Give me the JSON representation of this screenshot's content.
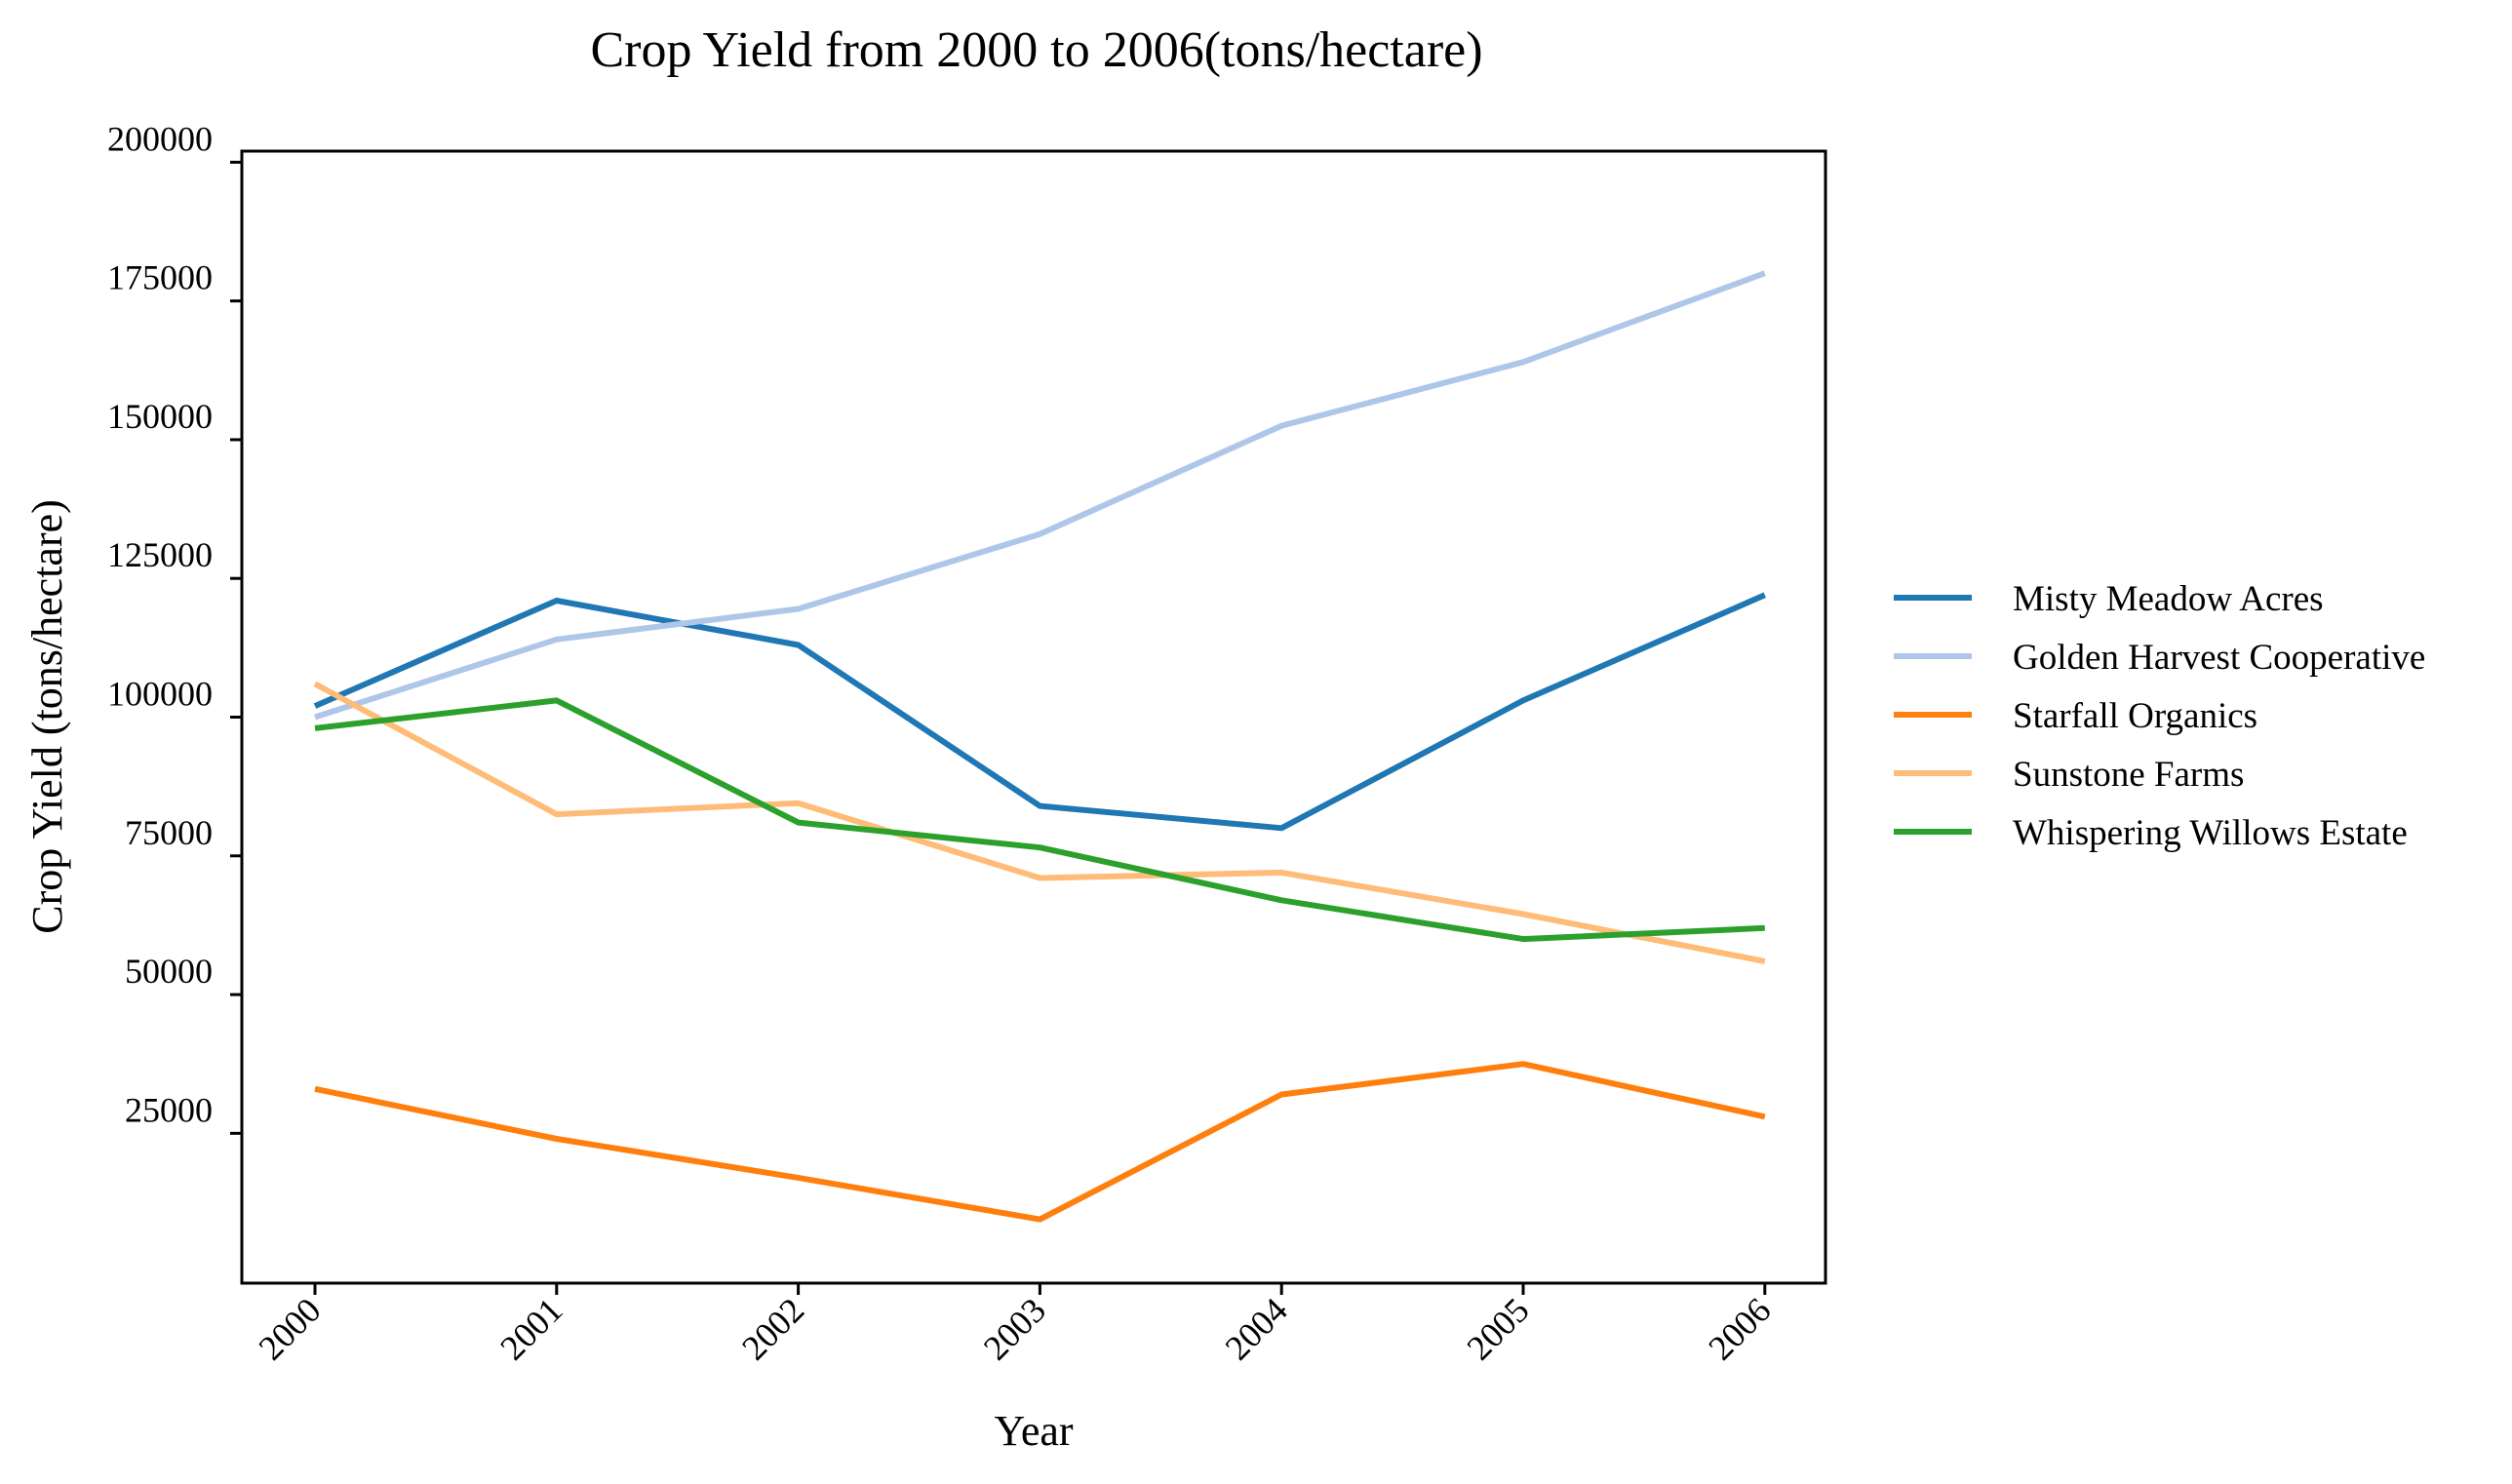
{
  "chart_data": {
    "type": "line",
    "title": "Crop Yield from 2000 to 2006(tons/hectare)",
    "xlabel": "Year",
    "ylabel": "Crop Yield (tons/hectare)",
    "categories": [
      "2000",
      "2001",
      "2002",
      "2003",
      "2004",
      "2005",
      "2006"
    ],
    "y_ticks": [
      25000,
      50000,
      75000,
      100000,
      125000,
      150000,
      175000,
      200000
    ],
    "ylim": [
      -2000,
      202000
    ],
    "grid": false,
    "legend_position": "right",
    "series": [
      {
        "name": "Misty Meadow Acres",
        "color": "#1f77b4",
        "values": [
          102000,
          121000,
          113000,
          84000,
          80000,
          103000,
          122000
        ]
      },
      {
        "name": "Golden Harvest Cooperative",
        "color": "#aec7e8",
        "values": [
          100000,
          114000,
          119500,
          133000,
          152500,
          164000,
          180000
        ]
      },
      {
        "name": "Starfall Organics",
        "color": "#ff7f0e",
        "values": [
          33000,
          24000,
          17000,
          9500,
          32000,
          37500,
          28000
        ]
      },
      {
        "name": "Sunstone Farms",
        "color": "#ffbb78",
        "values": [
          106000,
          82500,
          84500,
          71000,
          72000,
          64500,
          56000
        ]
      },
      {
        "name": "Whispering Willows Estate",
        "color": "#2ca02c",
        "values": [
          98000,
          103000,
          81000,
          76500,
          67000,
          60000,
          62000
        ]
      }
    ]
  }
}
